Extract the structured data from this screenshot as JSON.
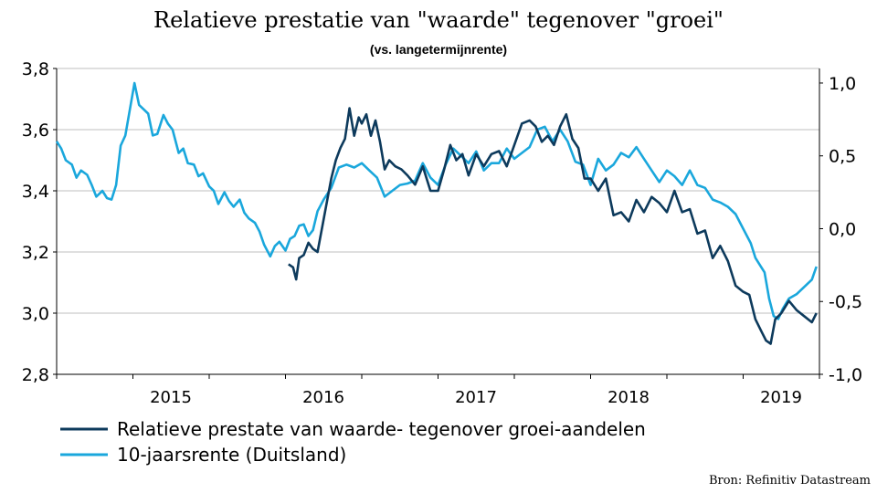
{
  "chart_data": {
    "type": "line",
    "title": "Relatieve prestatie van \"waarde\" tegenover \"groei\"",
    "subtitle": "(vs. langetermijnrente)",
    "source": "Bron: Refinitiv Datastream",
    "x_tick_labels": [
      "2015",
      "2016",
      "2017",
      "2018",
      "2019"
    ],
    "xlim": [
      2014.5,
      2019.5
    ],
    "y_left": {
      "ylim": [
        2.8,
        3.8
      ],
      "ticks": [
        "2,8",
        "3,0",
        "3,2",
        "3,4",
        "3,6",
        "3,8"
      ],
      "tick_values": [
        2.8,
        3.0,
        3.2,
        3.4,
        3.6,
        3.8
      ]
    },
    "y_right": {
      "ylim": [
        -1.0,
        1.1
      ],
      "ticks": [
        "-1,0",
        "-0,5",
        "0,0",
        "0,5",
        "1,0"
      ],
      "tick_values": [
        -1.0,
        -0.5,
        0.0,
        0.5,
        1.0
      ]
    },
    "grid": "horizontal",
    "legend": "bottom-left",
    "colors": {
      "value_vs_growth": "#0d3a5c",
      "bund_10y": "#1aa7dc",
      "grid": "#bfbfbf"
    },
    "series": [
      {
        "name": "Relatieve prestate van waarde- tegenover groei-aandelen",
        "axis": "left",
        "x": [
          2016.02,
          2016.05,
          2016.07,
          2016.09,
          2016.12,
          2016.15,
          2016.18,
          2016.21,
          2016.24,
          2016.27,
          2016.3,
          2016.33,
          2016.36,
          2016.39,
          2016.42,
          2016.45,
          2016.48,
          2016.5,
          2016.53,
          2016.56,
          2016.59,
          2016.62,
          2016.65,
          2016.68,
          2016.72,
          2016.76,
          2016.8,
          2016.85,
          2016.9,
          2016.95,
          2017.0,
          2017.04,
          2017.08,
          2017.12,
          2017.16,
          2017.2,
          2017.25,
          2017.3,
          2017.35,
          2017.4,
          2017.45,
          2017.5,
          2017.55,
          2017.6,
          2017.64,
          2017.68,
          2017.72,
          2017.76,
          2017.8,
          2017.84,
          2017.88,
          2017.92,
          2017.96,
          2018.0,
          2018.05,
          2018.1,
          2018.15,
          2018.2,
          2018.25,
          2018.3,
          2018.35,
          2018.4,
          2018.45,
          2018.5,
          2018.55,
          2018.6,
          2018.65,
          2018.7,
          2018.75,
          2018.8,
          2018.85,
          2018.9,
          2018.95,
          2019.0,
          2019.04,
          2019.08,
          2019.12,
          2019.15,
          2019.18,
          2019.21,
          2019.25,
          2019.3,
          2019.35,
          2019.4,
          2019.45,
          2019.48
        ],
        "values": [
          3.16,
          3.15,
          3.11,
          3.18,
          3.19,
          3.23,
          3.21,
          3.2,
          3.28,
          3.36,
          3.44,
          3.5,
          3.54,
          3.57,
          3.67,
          3.58,
          3.64,
          3.62,
          3.65,
          3.58,
          3.63,
          3.56,
          3.47,
          3.5,
          3.48,
          3.47,
          3.45,
          3.42,
          3.48,
          3.4,
          3.4,
          3.47,
          3.55,
          3.5,
          3.52,
          3.45,
          3.52,
          3.48,
          3.52,
          3.53,
          3.48,
          3.55,
          3.62,
          3.63,
          3.61,
          3.56,
          3.58,
          3.55,
          3.61,
          3.65,
          3.57,
          3.54,
          3.44,
          3.44,
          3.4,
          3.44,
          3.32,
          3.33,
          3.3,
          3.37,
          3.33,
          3.38,
          3.36,
          3.33,
          3.4,
          3.33,
          3.34,
          3.26,
          3.27,
          3.18,
          3.22,
          3.17,
          3.09,
          3.07,
          3.06,
          2.98,
          2.94,
          2.91,
          2.9,
          2.98,
          3.0,
          3.04,
          3.01,
          2.99,
          2.97,
          3.0
        ]
      },
      {
        "name": "10-jaarsrente (Duitsland)",
        "axis": "right",
        "x": [
          2014.5,
          2014.53,
          2014.56,
          2014.6,
          2014.63,
          2014.66,
          2014.7,
          2014.73,
          2014.76,
          2014.8,
          2014.83,
          2014.86,
          2014.89,
          2014.92,
          2014.95,
          2014.98,
          2015.01,
          2015.04,
          2015.07,
          2015.1,
          2015.13,
          2015.16,
          2015.2,
          2015.23,
          2015.26,
          2015.3,
          2015.33,
          2015.36,
          2015.4,
          2015.43,
          2015.46,
          2015.5,
          2015.53,
          2015.56,
          2015.6,
          2015.63,
          2015.66,
          2015.7,
          2015.73,
          2015.76,
          2015.8,
          2015.83,
          2015.86,
          2015.9,
          2015.93,
          2015.96,
          2016.0,
          2016.03,
          2016.06,
          2016.09,
          2016.12,
          2016.15,
          2016.18,
          2016.21,
          2016.25,
          2016.3,
          2016.35,
          2016.4,
          2016.45,
          2016.5,
          2016.55,
          2016.6,
          2016.65,
          2016.7,
          2016.75,
          2016.8,
          2016.85,
          2016.9,
          2016.95,
          2017.0,
          2017.05,
          2017.1,
          2017.15,
          2017.2,
          2017.25,
          2017.3,
          2017.35,
          2017.4,
          2017.45,
          2017.5,
          2017.55,
          2017.6,
          2017.65,
          2017.7,
          2017.75,
          2017.8,
          2017.85,
          2017.9,
          2017.95,
          2018.0,
          2018.05,
          2018.1,
          2018.15,
          2018.2,
          2018.25,
          2018.3,
          2018.35,
          2018.4,
          2018.45,
          2018.5,
          2018.55,
          2018.6,
          2018.65,
          2018.7,
          2018.75,
          2018.8,
          2018.85,
          2018.9,
          2018.95,
          2019.0,
          2019.05,
          2019.08,
          2019.11,
          2019.14,
          2019.17,
          2019.2,
          2019.23,
          2019.26,
          2019.3,
          2019.35,
          2019.4,
          2019.45,
          2019.48
        ],
        "values": [
          0.6,
          0.55,
          0.47,
          0.44,
          0.35,
          0.4,
          0.37,
          0.3,
          0.22,
          0.26,
          0.21,
          0.2,
          0.3,
          0.57,
          0.64,
          0.82,
          1.0,
          0.85,
          0.82,
          0.79,
          0.64,
          0.65,
          0.78,
          0.72,
          0.68,
          0.52,
          0.55,
          0.45,
          0.44,
          0.36,
          0.38,
          0.29,
          0.26,
          0.17,
          0.25,
          0.19,
          0.15,
          0.2,
          0.11,
          0.07,
          0.04,
          -0.02,
          -0.11,
          -0.19,
          -0.12,
          -0.09,
          -0.15,
          -0.07,
          -0.05,
          0.02,
          0.03,
          -0.05,
          -0.01,
          0.12,
          0.2,
          0.28,
          0.42,
          0.44,
          0.42,
          0.45,
          0.4,
          0.35,
          0.22,
          0.26,
          0.3,
          0.31,
          0.33,
          0.45,
          0.35,
          0.3,
          0.44,
          0.55,
          0.5,
          0.45,
          0.53,
          0.4,
          0.45,
          0.45,
          0.55,
          0.48,
          0.52,
          0.56,
          0.68,
          0.7,
          0.6,
          0.68,
          0.6,
          0.46,
          0.44,
          0.3,
          0.48,
          0.4,
          0.44,
          0.52,
          0.49,
          0.56,
          0.48,
          0.4,
          0.32,
          0.4,
          0.36,
          0.3,
          0.4,
          0.3,
          0.28,
          0.2,
          0.18,
          0.15,
          0.1,
          0.0,
          -0.1,
          -0.2,
          -0.25,
          -0.3,
          -0.48,
          -0.6,
          -0.62,
          -0.55,
          -0.48,
          -0.45,
          -0.4,
          -0.35,
          -0.26
        ]
      }
    ]
  }
}
